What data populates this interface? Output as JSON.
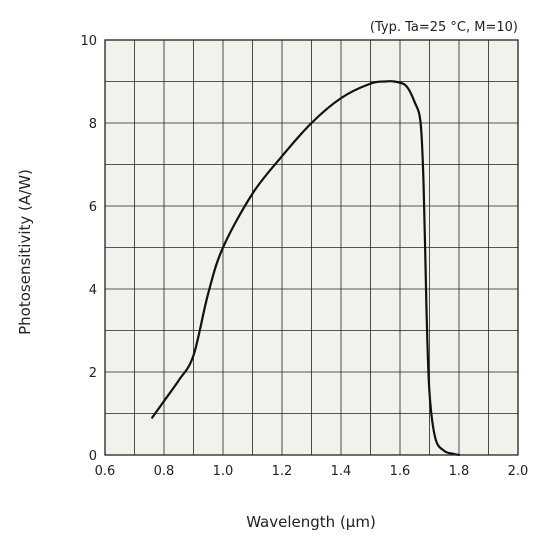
{
  "chart_data": {
    "type": "line",
    "annotation": "(Typ. Ta=25 °C, M=10)",
    "xlabel": "Wavelength (µm)",
    "ylabel": "Photosensitivity (A/W)",
    "xlim": [
      0.6,
      2.0
    ],
    "ylim": [
      0,
      10
    ],
    "xticks": [
      "0.6",
      "0.8",
      "1.0",
      "1.2",
      "1.4",
      "1.6",
      "1.8",
      "2.0"
    ],
    "yticks": [
      "0",
      "2",
      "4",
      "6",
      "8",
      "10"
    ],
    "grid": true,
    "minor_grid_x_step": 0.1,
    "grid_y_step": 1,
    "plot_background": "#f2f1ec",
    "line_color": "#111111",
    "series": [
      {
        "x": [
          0.76,
          0.78,
          0.8,
          0.85,
          0.9,
          0.95,
          1.0,
          1.1,
          1.2,
          1.3,
          1.4,
          1.5,
          1.55,
          1.58,
          1.62,
          1.65,
          1.67,
          1.68,
          1.69,
          1.7,
          1.72,
          1.75,
          1.78,
          1.8
        ],
        "y": [
          0.9,
          1.1,
          1.3,
          1.8,
          2.4,
          3.9,
          5.0,
          6.3,
          7.2,
          8.0,
          8.6,
          8.95,
          9.0,
          9.0,
          8.9,
          8.5,
          8.0,
          6.5,
          3.5,
          1.5,
          0.4,
          0.1,
          0.03,
          0.0
        ]
      }
    ]
  }
}
